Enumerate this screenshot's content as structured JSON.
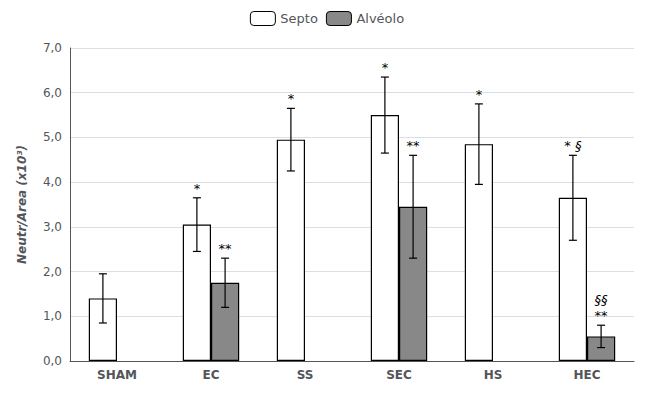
{
  "chart_data": {
    "type": "bar",
    "categories": [
      "SHAM",
      "EC",
      "SS",
      "SEC",
      "HS",
      "HEC"
    ],
    "series": [
      {
        "name": "Septo",
        "color": "#ffffff",
        "values": [
          1.4,
          3.05,
          4.95,
          5.5,
          4.85,
          3.65
        ],
        "errors": [
          0.55,
          0.6,
          0.7,
          0.85,
          0.9,
          0.95
        ]
      },
      {
        "name": "Alvéolo",
        "color": "#888888",
        "values": [
          null,
          1.75,
          null,
          3.45,
          null,
          0.55
        ],
        "errors": [
          null,
          0.55,
          null,
          1.15,
          null,
          0.25
        ]
      }
    ],
    "ylabel": "Neutr/Area (x10³)",
    "ylim": [
      0,
      7.0
    ],
    "yticks": [
      {
        "value": 0.0,
        "label": "0,0"
      },
      {
        "value": 1.0,
        "label": "1,0"
      },
      {
        "value": 2.0,
        "label": "2,0"
      },
      {
        "value": 3.0,
        "label": "3,0"
      },
      {
        "value": 4.0,
        "label": "4,0"
      },
      {
        "value": 5.0,
        "label": "5,0"
      },
      {
        "value": 6.0,
        "label": "6,0"
      },
      {
        "value": 7.0,
        "label": "7,0"
      }
    ],
    "annotations": [
      {
        "series": "Septo",
        "category": "EC",
        "text": "*"
      },
      {
        "series": "Septo",
        "category": "SS",
        "text": "*"
      },
      {
        "series": "Septo",
        "category": "SEC",
        "text": "*"
      },
      {
        "series": "Septo",
        "category": "HS",
        "text": "*"
      },
      {
        "series": "Septo",
        "category": "HEC",
        "text": "* §"
      },
      {
        "series": "Alvéolo",
        "category": "EC",
        "text": "**"
      },
      {
        "series": "Alvéolo",
        "category": "SEC",
        "text": "**"
      },
      {
        "series": "Alvéolo",
        "category": "HEC",
        "text": "**"
      },
      {
        "series": "Alvéolo",
        "category": "HEC",
        "text": "§§"
      }
    ],
    "grid": true,
    "legend": "top"
  }
}
